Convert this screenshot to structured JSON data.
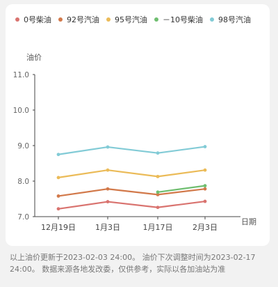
{
  "chart_data": {
    "type": "line",
    "ylabel": "油价",
    "xlabel": "日期",
    "categories": [
      "12月19日",
      "1月3日",
      "1月17日",
      "2月3日"
    ],
    "ylim": [
      7.0,
      11.0
    ],
    "yticks": [
      "7.0",
      "8.0",
      "9.0",
      "10.0",
      "11.0"
    ],
    "grid": false,
    "legend_position": "top",
    "series": [
      {
        "name": "0号柴油",
        "color": "#d9736f",
        "values": [
          7.22,
          7.42,
          7.26,
          7.43
        ]
      },
      {
        "name": "92号汽油",
        "color": "#d2794a",
        "values": [
          7.58,
          7.78,
          7.62,
          7.78
        ]
      },
      {
        "name": "95号汽油",
        "color": "#ebbb58",
        "values": [
          8.1,
          8.31,
          8.13,
          8.31
        ]
      },
      {
        "name": "－10号柴油",
        "color": "#6fbe70",
        "values": [
          null,
          null,
          7.69,
          7.87
        ]
      },
      {
        "name": "98号汽油",
        "color": "#82cbd6",
        "values": [
          8.75,
          8.96,
          8.79,
          8.97
        ]
      }
    ]
  },
  "footnote": "以上油价更新于2023-02-03 24:00。 油价下次调整时间为2023-02-17 24:00。 数据来源各地发改委，仅供参考，实际以各加油站为准"
}
